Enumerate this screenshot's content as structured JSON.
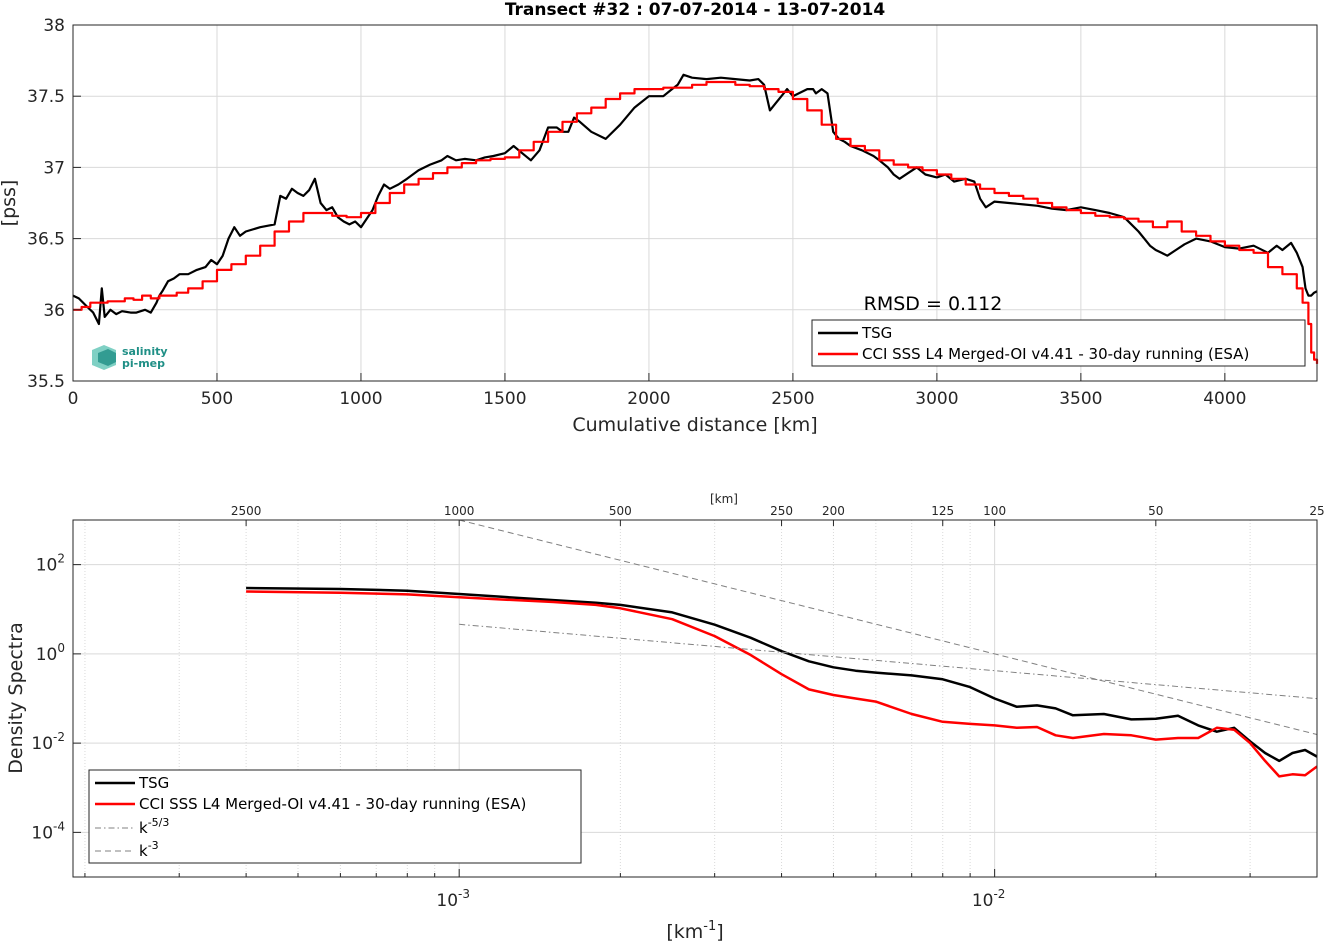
{
  "colors": {
    "tsg": "#000000",
    "cci": "#ff0000",
    "grid": "#d9d9d9",
    "ref": "#808080",
    "logo": "#1f8f86"
  },
  "logo": {
    "line1": "salinity",
    "line2": "pi-mep"
  },
  "chart_data": [
    {
      "type": "line",
      "title": "Transect #32 : 07-07-2014 - 13-07-2014",
      "xlabel": "Cumulative distance [km]",
      "ylabel": "[pss]",
      "xlim": [
        0,
        4320
      ],
      "ylim": [
        35.5,
        38
      ],
      "xticks": [
        0,
        500,
        1000,
        1500,
        2000,
        2500,
        3000,
        3500,
        4000
      ],
      "yticks": [
        35.5,
        36,
        36.5,
        37,
        37.5,
        38
      ],
      "grid": true,
      "legend_position": "bottom-right",
      "annotation": "RMSD = 0.112",
      "series": [
        {
          "name": "TSG",
          "color": "#000000",
          "x": [
            0,
            20,
            50,
            70,
            90,
            100,
            110,
            130,
            150,
            170,
            200,
            220,
            250,
            270,
            290,
            300,
            310,
            330,
            350,
            370,
            400,
            430,
            460,
            480,
            500,
            520,
            540,
            560,
            580,
            600,
            650,
            700,
            720,
            740,
            760,
            780,
            800,
            820,
            840,
            860,
            880,
            900,
            920,
            940,
            960,
            980,
            1000,
            1020,
            1040,
            1060,
            1080,
            1100,
            1130,
            1160,
            1200,
            1240,
            1280,
            1300,
            1330,
            1360,
            1400,
            1430,
            1460,
            1500,
            1530,
            1560,
            1590,
            1620,
            1650,
            1680,
            1700,
            1720,
            1740,
            1760,
            1800,
            1850,
            1900,
            1950,
            2000,
            2050,
            2080,
            2100,
            2120,
            2150,
            2200,
            2250,
            2300,
            2350,
            2380,
            2400,
            2420,
            2440,
            2460,
            2480,
            2500,
            2520,
            2550,
            2570,
            2580,
            2600,
            2620,
            2640,
            2660,
            2680,
            2700,
            2740,
            2780,
            2800,
            2830,
            2850,
            2870,
            2900,
            2930,
            2960,
            3000,
            3030,
            3060,
            3100,
            3130,
            3150,
            3170,
            3200,
            3250,
            3300,
            3350,
            3400,
            3450,
            3500,
            3550,
            3600,
            3650,
            3700,
            3740,
            3760,
            3780,
            3800,
            3830,
            3860,
            3900,
            3950,
            4000,
            4050,
            4100,
            4150,
            4180,
            4200,
            4230,
            4250,
            4270,
            4280,
            4290,
            4300,
            4310,
            4320
          ],
          "values": [
            36.1,
            36.08,
            36.02,
            35.98,
            35.9,
            36.15,
            35.95,
            36.0,
            35.97,
            35.99,
            35.98,
            35.98,
            36.0,
            35.98,
            36.05,
            36.1,
            36.13,
            36.2,
            36.22,
            36.25,
            36.25,
            36.28,
            36.3,
            36.35,
            36.32,
            36.38,
            36.5,
            36.58,
            36.52,
            36.55,
            36.58,
            36.6,
            36.8,
            36.78,
            36.85,
            36.82,
            36.8,
            36.84,
            36.92,
            36.75,
            36.7,
            36.72,
            36.65,
            36.62,
            36.6,
            36.62,
            36.58,
            36.64,
            36.7,
            36.8,
            36.88,
            36.85,
            36.88,
            36.92,
            36.98,
            37.02,
            37.05,
            37.08,
            37.05,
            37.06,
            37.05,
            37.07,
            37.08,
            37.1,
            37.15,
            37.1,
            37.05,
            37.12,
            37.28,
            37.28,
            37.25,
            37.25,
            37.35,
            37.32,
            37.25,
            37.2,
            37.3,
            37.42,
            37.5,
            37.5,
            37.55,
            37.58,
            37.65,
            37.63,
            37.62,
            37.63,
            37.62,
            37.61,
            37.62,
            37.58,
            37.4,
            37.45,
            37.5,
            37.55,
            37.5,
            37.52,
            37.55,
            37.55,
            37.52,
            37.55,
            37.52,
            37.25,
            37.2,
            37.18,
            37.15,
            37.12,
            37.08,
            37.05,
            37.0,
            36.95,
            36.92,
            36.96,
            37.0,
            36.95,
            36.93,
            36.95,
            36.9,
            36.92,
            36.9,
            36.78,
            36.72,
            36.76,
            36.75,
            36.74,
            36.73,
            36.71,
            36.7,
            36.72,
            36.7,
            36.68,
            36.65,
            36.55,
            36.45,
            36.42,
            36.4,
            36.38,
            36.42,
            36.46,
            36.5,
            36.48,
            36.44,
            36.43,
            36.45,
            36.4,
            36.45,
            36.42,
            36.47,
            36.4,
            36.3,
            36.15,
            36.1,
            36.1,
            36.12,
            36.13
          ]
        },
        {
          "name": "CCI SSS L4 Merged-OI v4.41 - 30-day running (ESA)",
          "color": "#ff0000",
          "x": [
            0,
            30,
            60,
            90,
            120,
            150,
            180,
            210,
            240,
            270,
            300,
            330,
            360,
            400,
            450,
            500,
            550,
            600,
            650,
            700,
            750,
            800,
            850,
            900,
            950,
            1000,
            1050,
            1100,
            1150,
            1200,
            1250,
            1300,
            1350,
            1400,
            1450,
            1500,
            1550,
            1600,
            1650,
            1700,
            1750,
            1800,
            1850,
            1900,
            1950,
            2000,
            2050,
            2100,
            2150,
            2200,
            2250,
            2300,
            2350,
            2400,
            2450,
            2500,
            2550,
            2600,
            2650,
            2700,
            2750,
            2800,
            2850,
            2900,
            2950,
            3000,
            3050,
            3100,
            3150,
            3200,
            3250,
            3300,
            3350,
            3400,
            3450,
            3500,
            3550,
            3600,
            3650,
            3700,
            3750,
            3800,
            3850,
            3900,
            3950,
            4000,
            4050,
            4100,
            4150,
            4200,
            4250,
            4270,
            4290,
            4300,
            4310,
            4320
          ],
          "values": [
            36.0,
            36.02,
            36.05,
            36.05,
            36.06,
            36.06,
            36.08,
            36.07,
            36.1,
            36.08,
            36.1,
            36.1,
            36.12,
            36.15,
            36.2,
            36.28,
            36.32,
            36.38,
            36.45,
            36.55,
            36.62,
            36.68,
            36.68,
            36.66,
            36.65,
            36.68,
            36.75,
            36.82,
            36.88,
            36.92,
            36.96,
            37.0,
            37.03,
            37.05,
            37.06,
            37.07,
            37.12,
            37.18,
            37.25,
            37.32,
            37.38,
            37.42,
            37.48,
            37.52,
            37.55,
            37.55,
            37.56,
            37.56,
            37.58,
            37.6,
            37.6,
            37.58,
            37.57,
            37.55,
            37.53,
            37.48,
            37.4,
            37.3,
            37.2,
            37.15,
            37.12,
            37.05,
            37.02,
            37.0,
            36.98,
            36.95,
            36.92,
            36.88,
            36.85,
            36.82,
            36.8,
            36.78,
            36.75,
            36.72,
            36.7,
            36.68,
            36.66,
            36.65,
            36.64,
            36.62,
            36.58,
            36.62,
            36.55,
            36.52,
            36.48,
            36.45,
            36.42,
            36.4,
            36.3,
            36.25,
            36.15,
            36.05,
            35.9,
            35.7,
            35.65,
            35.62
          ]
        }
      ]
    },
    {
      "type": "line",
      "title": "",
      "xlabel": "[km-1]",
      "xlabel_main": "[km",
      "xlabel_sup": "-1",
      "xlabel_end": "]",
      "ylabel": "Density Spectra",
      "top_axis_label": "[km]",
      "top_ticks": [
        "2500",
        "1000",
        "500",
        "250",
        "200",
        "125",
        "100",
        "50",
        "25"
      ],
      "top_tick_km": [
        2500,
        1000,
        500,
        250,
        200,
        125,
        100,
        50,
        25
      ],
      "xscale": "log",
      "yscale": "log",
      "xlim": [
        0.00019,
        0.04
      ],
      "ylim": [
        1e-05,
        1000
      ],
      "xticks": [
        {
          "base": "10",
          "exp": "-3",
          "value": 0.001
        },
        {
          "base": "10",
          "exp": "-2",
          "value": 0.01
        }
      ],
      "yticks": [
        {
          "base": "10",
          "exp": "2",
          "value": 100
        },
        {
          "base": "10",
          "exp": "0",
          "value": 1
        },
        {
          "base": "10",
          "exp": "-2",
          "value": 0.01
        },
        {
          "base": "10",
          "exp": "-4",
          "value": 0.0001
        }
      ],
      "grid": true,
      "legend_position": "bottom-left",
      "series": [
        {
          "name": "TSG",
          "color": "#000000",
          "style": "solid",
          "x": [
            0.0004,
            0.0006,
            0.0008,
            0.001,
            0.0012,
            0.0015,
            0.0018,
            0.002,
            0.0025,
            0.003,
            0.0035,
            0.004,
            0.0045,
            0.005,
            0.0055,
            0.006,
            0.007,
            0.008,
            0.009,
            0.01,
            0.011,
            0.012,
            0.013,
            0.014,
            0.016,
            0.018,
            0.02,
            0.022,
            0.024,
            0.026,
            0.028,
            0.03,
            0.032,
            0.034,
            0.036,
            0.038,
            0.04
          ],
          "values": [
            30,
            28.5,
            26,
            22,
            19,
            16,
            14,
            12.5,
            8.5,
            4.5,
            2.3,
            1.15,
            0.68,
            0.5,
            0.42,
            0.38,
            0.33,
            0.27,
            0.18,
            0.1,
            0.065,
            0.07,
            0.06,
            0.042,
            0.045,
            0.034,
            0.035,
            0.041,
            0.025,
            0.018,
            0.022,
            0.011,
            0.006,
            0.004,
            0.006,
            0.007,
            0.005
          ]
        },
        {
          "name": "CCI SSS L4 Merged-OI v4.41 - 30-day running (ESA)",
          "color": "#ff0000",
          "style": "solid",
          "x": [
            0.0004,
            0.0006,
            0.0008,
            0.001,
            0.0012,
            0.0015,
            0.0018,
            0.002,
            0.0025,
            0.003,
            0.0035,
            0.004,
            0.0045,
            0.005,
            0.0055,
            0.006,
            0.007,
            0.008,
            0.009,
            0.01,
            0.011,
            0.012,
            0.013,
            0.014,
            0.016,
            0.018,
            0.02,
            0.022,
            0.024,
            0.026,
            0.028,
            0.03,
            0.032,
            0.034,
            0.036,
            0.038,
            0.04
          ],
          "values": [
            25,
            23.5,
            21.5,
            18.5,
            16.5,
            14.5,
            12.5,
            10.5,
            6,
            2.5,
            0.95,
            0.35,
            0.16,
            0.12,
            0.1,
            0.085,
            0.045,
            0.03,
            0.027,
            0.025,
            0.022,
            0.023,
            0.015,
            0.013,
            0.016,
            0.015,
            0.012,
            0.013,
            0.013,
            0.022,
            0.02,
            0.01,
            0.004,
            0.0018,
            0.002,
            0.0019,
            0.003
          ]
        },
        {
          "name": "k-5/3",
          "label_main": "k",
          "label_sup": "-5/3",
          "color": "#808080",
          "style": "dashdot",
          "x": [
            0.001,
            0.04
          ],
          "values": [
            4.6,
            0.0996
          ]
        },
        {
          "name": "k-3",
          "label_main": "k",
          "label_sup": "-3",
          "color": "#808080",
          "style": "dashed",
          "x": [
            0.001,
            0.04
          ],
          "values": [
            1000,
            0.0156
          ]
        }
      ]
    }
  ]
}
